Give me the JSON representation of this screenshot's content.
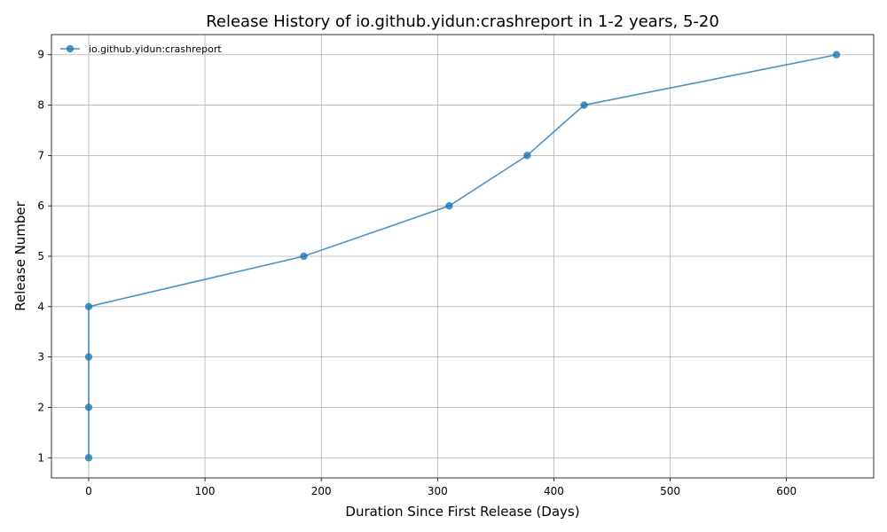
{
  "chart_data": {
    "type": "line",
    "title": "Release History of io.github.yidun:crashreport in 1-2 years, 5-20",
    "xlabel": "Duration Since First Release (Days)",
    "ylabel": "Release Number",
    "xlim": [
      -32,
      675
    ],
    "ylim": [
      0.6,
      9.4
    ],
    "xticks": [
      0,
      100,
      200,
      300,
      400,
      500,
      600
    ],
    "yticks": [
      1,
      2,
      3,
      4,
      5,
      6,
      7,
      8,
      9
    ],
    "grid": true,
    "legend_position": "top-left",
    "series": [
      {
        "name": "io.github.yidun:crashreport",
        "color": "#1f77b4",
        "x": [
          0,
          0,
          0,
          0,
          185,
          310,
          377,
          426,
          643
        ],
        "y": [
          1,
          2,
          3,
          4,
          5,
          6,
          7,
          8,
          9
        ]
      }
    ]
  }
}
